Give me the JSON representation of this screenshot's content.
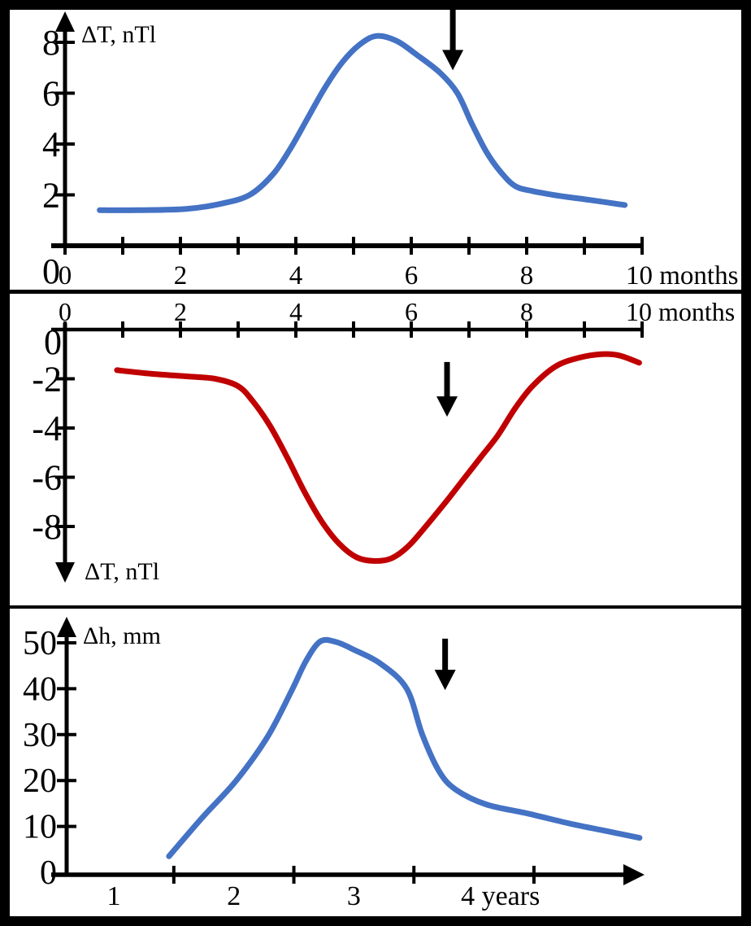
{
  "figure": {
    "frame_color": "#000000",
    "canvas_color": "#ffffff",
    "axis_color": "#000000"
  },
  "chart_data": [
    {
      "id": "delta-t-positive-anomaly",
      "type": "line",
      "axis_label": "ΔT, nTl",
      "x_unit": "months",
      "xlim": [
        0,
        10
      ],
      "ylim": [
        0,
        9.3
      ],
      "color": "#4472C4",
      "x_tick_marks": [
        0,
        1,
        2,
        3,
        4,
        5,
        6,
        7,
        8,
        9,
        10
      ],
      "y_tick_marks": [
        2,
        4,
        6,
        8
      ],
      "x_labels": [
        {
          "v": 0,
          "t": "0"
        },
        {
          "v": 2,
          "t": "2"
        },
        {
          "v": 4,
          "t": "4"
        },
        {
          "v": 6,
          "t": "6"
        },
        {
          "v": 8,
          "t": "8"
        },
        {
          "v": 10,
          "t": "10 months"
        }
      ],
      "y_labels": [
        {
          "v": 0,
          "t": "0"
        },
        {
          "v": 2,
          "t": "2"
        },
        {
          "v": 4,
          "t": "4"
        },
        {
          "v": 6,
          "t": "6"
        },
        {
          "v": 8,
          "t": "8"
        }
      ],
      "points": [
        [
          0.6,
          1.4
        ],
        [
          1.3,
          1.4
        ],
        [
          2.1,
          1.45
        ],
        [
          2.7,
          1.65
        ],
        [
          3.2,
          2.0
        ],
        [
          3.6,
          2.8
        ],
        [
          3.9,
          3.8
        ],
        [
          4.2,
          5.0
        ],
        [
          4.5,
          6.2
        ],
        [
          4.8,
          7.2
        ],
        [
          5.1,
          7.9
        ],
        [
          5.4,
          8.25
        ],
        [
          5.75,
          8.05
        ],
        [
          6.1,
          7.5
        ],
        [
          6.5,
          6.8
        ],
        [
          6.8,
          6.0
        ],
        [
          7.05,
          4.8
        ],
        [
          7.3,
          3.7
        ],
        [
          7.55,
          2.9
        ],
        [
          7.8,
          2.35
        ],
        [
          8.1,
          2.15
        ],
        [
          8.6,
          1.95
        ],
        [
          9.1,
          1.8
        ],
        [
          9.7,
          1.6
        ]
      ],
      "marker_arrow": {
        "x": 6.72,
        "from": 9.28,
        "to": 6.9
      }
    },
    {
      "id": "delta-t-negative-anomaly",
      "type": "line",
      "axis_label": "ΔT, nTl",
      "x_unit": "months",
      "xlim": [
        0,
        10
      ],
      "ylim": [
        -9.9,
        0
      ],
      "color": "#C00000",
      "x_tick_marks": [
        0,
        1,
        2,
        3,
        4,
        5,
        6,
        7,
        8,
        9,
        10
      ],
      "y_tick_marks": [
        -2,
        -4,
        -6,
        -8
      ],
      "x_labels": [
        {
          "v": 0,
          "t": "0"
        },
        {
          "v": 2,
          "t": "2"
        },
        {
          "v": 4,
          "t": "4"
        },
        {
          "v": 6,
          "t": "6"
        },
        {
          "v": 8,
          "t": "8"
        },
        {
          "v": 10,
          "t": "10 months"
        }
      ],
      "y_labels": [
        {
          "v": 0,
          "t": "0"
        },
        {
          "v": -2,
          "t": "-2"
        },
        {
          "v": -4,
          "t": "-4"
        },
        {
          "v": -6,
          "t": "-6"
        },
        {
          "v": -8,
          "t": "-8"
        }
      ],
      "points": [
        [
          0.9,
          -1.65
        ],
        [
          1.5,
          -1.8
        ],
        [
          2.1,
          -1.9
        ],
        [
          2.6,
          -2.0
        ],
        [
          3.0,
          -2.3
        ],
        [
          3.25,
          -2.9
        ],
        [
          3.55,
          -3.9
        ],
        [
          3.85,
          -5.2
        ],
        [
          4.15,
          -6.6
        ],
        [
          4.45,
          -7.8
        ],
        [
          4.75,
          -8.7
        ],
        [
          5.05,
          -9.25
        ],
        [
          5.35,
          -9.4
        ],
        [
          5.65,
          -9.3
        ],
        [
          5.95,
          -8.8
        ],
        [
          6.25,
          -8.0
        ],
        [
          6.6,
          -7.0
        ],
        [
          6.9,
          -6.1
        ],
        [
          7.2,
          -5.2
        ],
        [
          7.5,
          -4.3
        ],
        [
          7.8,
          -3.2
        ],
        [
          8.1,
          -2.3
        ],
        [
          8.5,
          -1.5
        ],
        [
          8.9,
          -1.15
        ],
        [
          9.3,
          -1.0
        ],
        [
          9.6,
          -1.05
        ],
        [
          9.95,
          -1.35
        ]
      ],
      "marker_arrow": {
        "x": 6.62,
        "from": -1.32,
        "to": -3.54
      }
    },
    {
      "id": "delta-h-uplift",
      "type": "line",
      "axis_label": "Δh, mm",
      "x_unit": "years",
      "xlim": [
        1,
        5.5
      ],
      "ylim": [
        0,
        53
      ],
      "color": "#4472C4",
      "x_tick_marks": [
        1.5,
        2.5,
        3.5,
        4.5
      ],
      "y_tick_marks": [
        10,
        20,
        30,
        40,
        50
      ],
      "x_labels": [
        {
          "v": 1,
          "t": "1"
        },
        {
          "v": 2,
          "t": "2"
        },
        {
          "v": 3,
          "t": "3"
        },
        {
          "v": 4,
          "t": "4 years"
        }
      ],
      "y_labels": [
        {
          "v": 0,
          "t": "0"
        },
        {
          "v": 10,
          "t": "10"
        },
        {
          "v": 20,
          "t": "20"
        },
        {
          "v": 30,
          "t": "30"
        },
        {
          "v": 40,
          "t": "40"
        },
        {
          "v": 50,
          "t": "50"
        }
      ],
      "points": [
        [
          1.46,
          3.5
        ],
        [
          1.74,
          12
        ],
        [
          2.02,
          20
        ],
        [
          2.28,
          29.5
        ],
        [
          2.48,
          39.5
        ],
        [
          2.6,
          46
        ],
        [
          2.72,
          50.3
        ],
        [
          2.85,
          50.2
        ],
        [
          3.0,
          48.5
        ],
        [
          3.22,
          45.5
        ],
        [
          3.44,
          40
        ],
        [
          3.57,
          30
        ],
        [
          3.71,
          22
        ],
        [
          3.85,
          18
        ],
        [
          4.1,
          14.8
        ],
        [
          4.45,
          12.8
        ],
        [
          4.8,
          10.6
        ],
        [
          5.1,
          9.0
        ],
        [
          5.38,
          7.5
        ]
      ],
      "marker_arrow": {
        "x": 3.76,
        "from": 50.9,
        "to": 39.7
      }
    }
  ]
}
